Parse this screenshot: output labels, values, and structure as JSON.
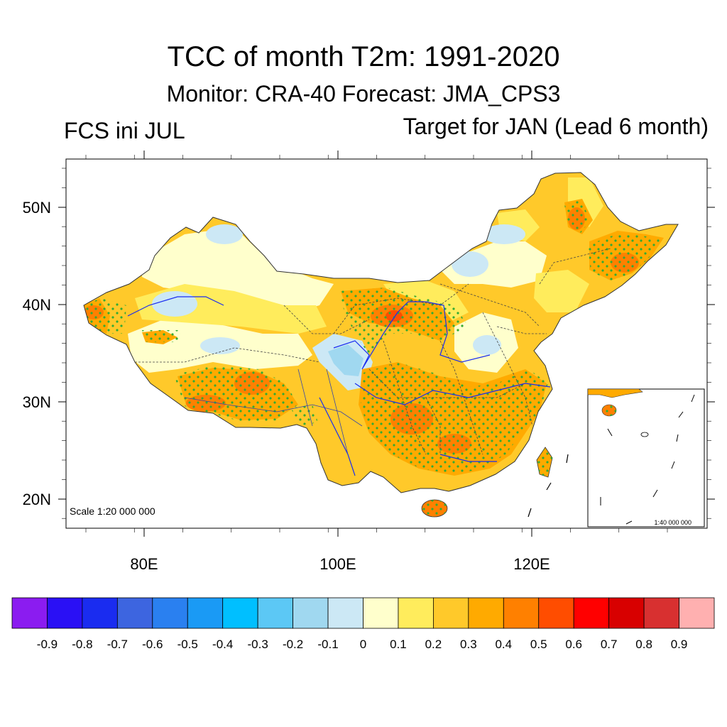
{
  "header": {
    "title": "TCC of month T2m: 1991-2020",
    "subtitle": "Monitor: CRA-40   Forecast: JMA_CPS3",
    "left_label": "FCS ini JUL",
    "right_label": "Target for JAN (Lead 6 month)"
  },
  "map": {
    "lat_labels": [
      "50N",
      "40N",
      "30N",
      "20N"
    ],
    "lon_labels": [
      "80E",
      "100E",
      "120E"
    ],
    "scale_text": "Scale 1:20 000 000",
    "inset_scale_text": "1:40 000 000",
    "stipple_color": "#33aa33"
  },
  "colorbar": {
    "tick_labels": [
      "-0.9",
      "-0.8",
      "-0.7",
      "-0.6",
      "-0.5",
      "-0.4",
      "-0.3",
      "-0.2",
      "-0.1",
      "0",
      "0.1",
      "0.2",
      "0.3",
      "0.4",
      "0.5",
      "0.6",
      "0.7",
      "0.8",
      "0.9"
    ],
    "colors": [
      "#8b1cf0",
      "#2a10f5",
      "#1a2cf0",
      "#3d65e0",
      "#2a80f0",
      "#1a9af5",
      "#00bfff",
      "#5cc8f5",
      "#a0d8f0",
      "#cce8f5",
      "#ffffcc",
      "#ffec5c",
      "#ffc92a",
      "#ffaa00",
      "#ff8000",
      "#ff4d00",
      "#ff0000",
      "#d80000",
      "#d83030",
      "#ffb0b0"
    ]
  }
}
